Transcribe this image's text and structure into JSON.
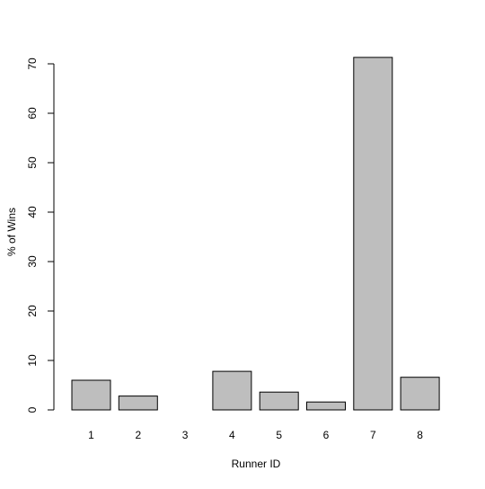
{
  "chart_data": {
    "type": "bar",
    "title": "",
    "xlabel": "Runner ID",
    "ylabel": "% of Wins",
    "categories": [
      "1",
      "2",
      "3",
      "4",
      "5",
      "6",
      "7",
      "8"
    ],
    "values": [
      6.0,
      2.8,
      0.0,
      7.8,
      3.6,
      1.6,
      71.3,
      6.6
    ],
    "ylim": [
      0,
      70
    ],
    "yticks": [
      0,
      10,
      20,
      30,
      40,
      50,
      60,
      70
    ],
    "grid": false,
    "legend": "none",
    "bar_fill": "#bebebe",
    "bar_stroke": "#000000"
  }
}
